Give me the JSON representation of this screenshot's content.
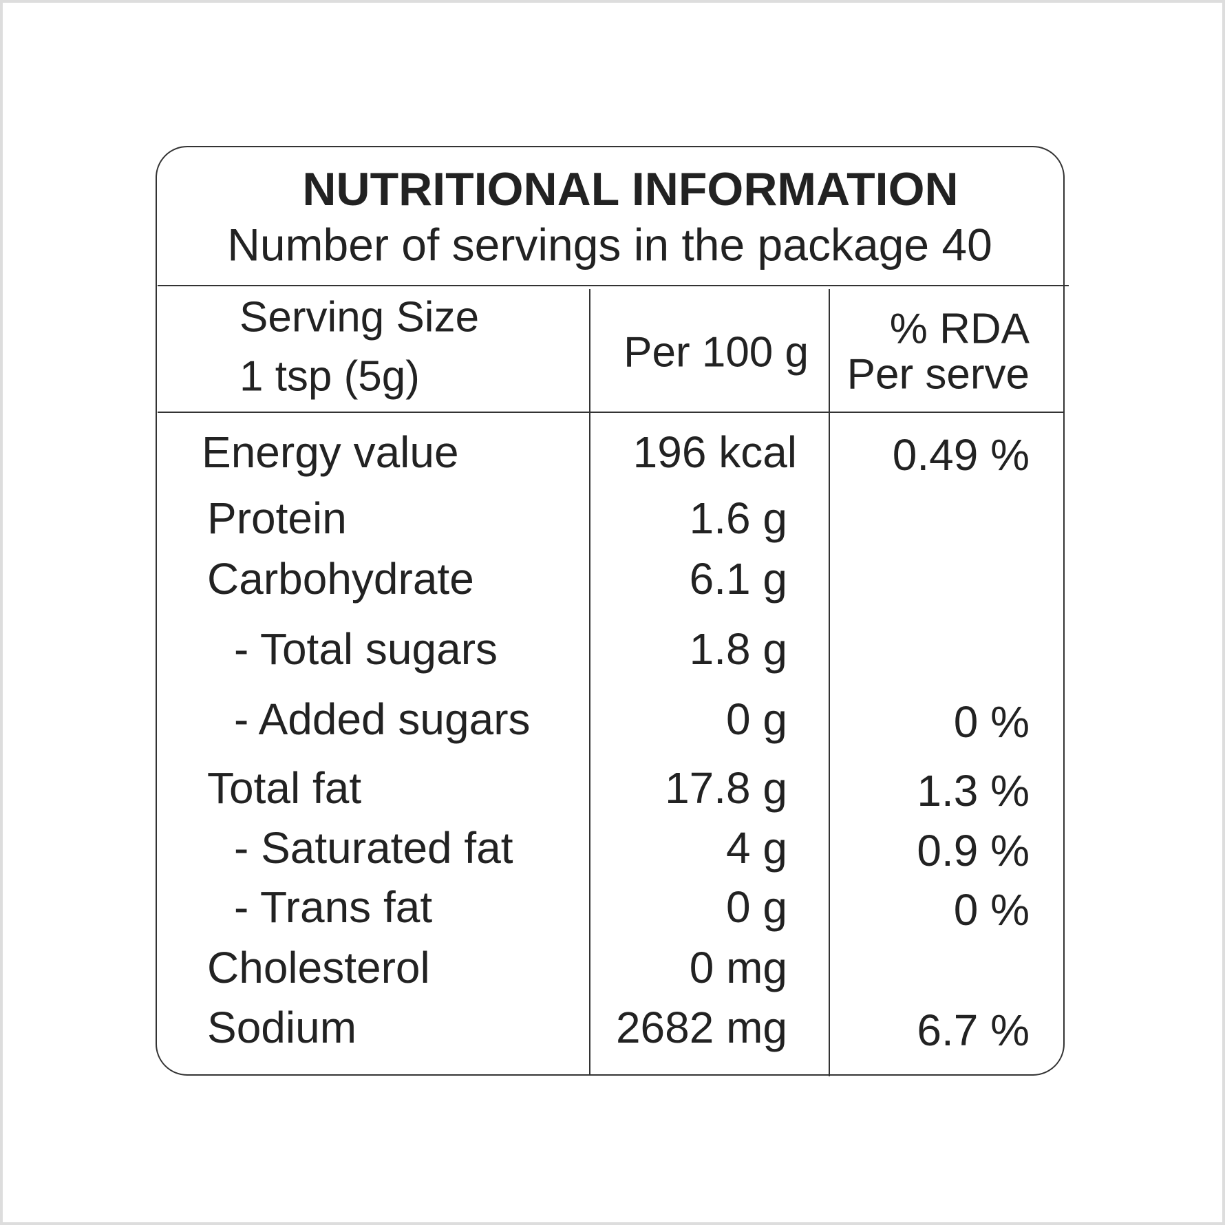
{
  "header": {
    "title": "NUTRITIONAL INFORMATION",
    "subtitle": "Number of servings in the package 40"
  },
  "table": {
    "columns": {
      "serving": [
        "Serving Size",
        "1 tsp (5g)"
      ],
      "per_100g": "Per 100 g",
      "rda": [
        "% RDA",
        "Per serve"
      ]
    },
    "rows": [
      {
        "name": "Energy value",
        "per_100g": "196 kcal",
        "rda": "0.49 %"
      },
      {
        "name": "Protein",
        "per_100g": "1.6 g"
      },
      {
        "name": "Carbohydrate",
        "per_100g": "6.1 g"
      },
      {
        "name": "- Total sugars",
        "per_100g": "1.8 g"
      },
      {
        "name": "- Added sugars",
        "per_100g": "0 g",
        "rda": "0 %"
      },
      {
        "name": "Total fat",
        "per_100g": "17.8 g",
        "rda": "1.3 %"
      },
      {
        "name": "- Saturated fat",
        "per_100g": "4 g",
        "rda": "0.9 %"
      },
      {
        "name": "- Trans fat",
        "per_100g": "0 g",
        "rda": "0 %"
      },
      {
        "name": "Cholesterol",
        "per_100g": "0 mg"
      },
      {
        "name": "Sodium",
        "per_100g": "2682 mg",
        "rda": "6.7 %"
      }
    ]
  }
}
